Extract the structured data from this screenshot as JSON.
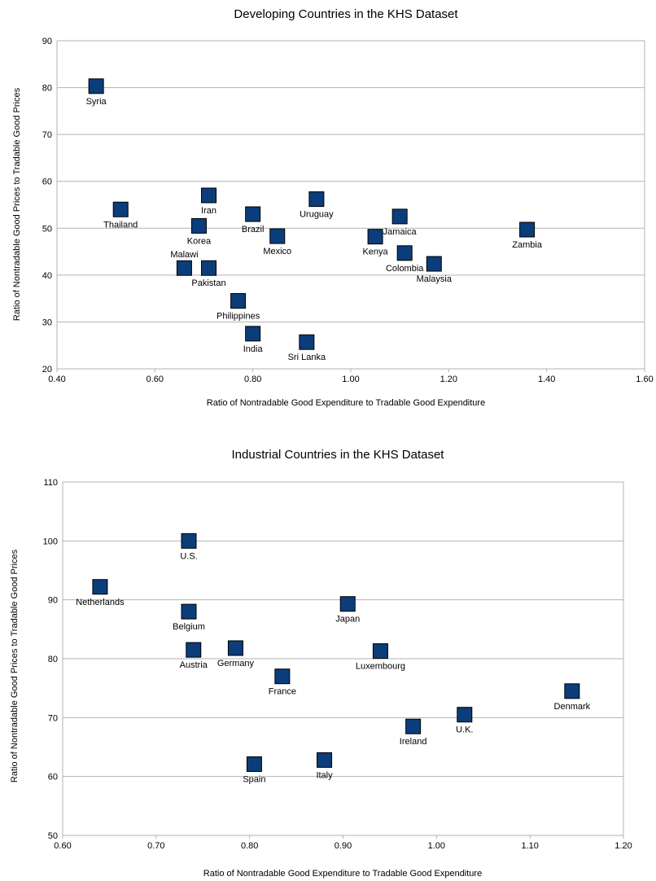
{
  "chart_data": [
    {
      "type": "scatter",
      "title": "Developing Countries in the KHS Dataset",
      "xlabel": "Ratio of Nontradable Good Expenditure to Tradable Good Expenditure",
      "ylabel": "Ratio of Nontradable Good Prices to Tradable Good Prices",
      "xlim": [
        0.4,
        1.6
      ],
      "ylim": [
        20,
        90
      ],
      "xticks": [
        "0.40",
        "0.60",
        "0.80",
        "1.00",
        "1.20",
        "1.40",
        "1.60"
      ],
      "yticks": [
        "20",
        "30",
        "40",
        "50",
        "60",
        "70",
        "80",
        "90"
      ],
      "grid": "horizontal",
      "marker_color": "#0b3d7a",
      "points": [
        {
          "label": "Syria",
          "x": 0.48,
          "y": 80.3,
          "pos": "below"
        },
        {
          "label": "Thailand",
          "x": 0.53,
          "y": 54.0,
          "pos": "below"
        },
        {
          "label": "Iran",
          "x": 0.71,
          "y": 57.0,
          "pos": "below"
        },
        {
          "label": "Korea",
          "x": 0.69,
          "y": 50.5,
          "pos": "below"
        },
        {
          "label": "Malawi",
          "x": 0.66,
          "y": 41.5,
          "pos": "above"
        },
        {
          "label": "Pakistan",
          "x": 0.71,
          "y": 41.5,
          "pos": "below"
        },
        {
          "label": "Brazil",
          "x": 0.8,
          "y": 53.0,
          "pos": "below"
        },
        {
          "label": "Mexico",
          "x": 0.85,
          "y": 48.3,
          "pos": "below"
        },
        {
          "label": "Uruguay",
          "x": 0.93,
          "y": 56.2,
          "pos": "below"
        },
        {
          "label": "Philippines",
          "x": 0.77,
          "y": 34.5,
          "pos": "below"
        },
        {
          "label": "India",
          "x": 0.8,
          "y": 27.5,
          "pos": "below"
        },
        {
          "label": "Sri Lanka",
          "x": 0.91,
          "y": 25.7,
          "pos": "below"
        },
        {
          "label": "Kenya",
          "x": 1.05,
          "y": 48.2,
          "pos": "below"
        },
        {
          "label": "Jamaica",
          "x": 1.1,
          "y": 52.5,
          "pos": "below"
        },
        {
          "label": "Colombia",
          "x": 1.11,
          "y": 44.7,
          "pos": "below"
        },
        {
          "label": "Malaysia",
          "x": 1.17,
          "y": 42.4,
          "pos": "below"
        },
        {
          "label": "Zambia",
          "x": 1.36,
          "y": 49.7,
          "pos": "below"
        }
      ]
    },
    {
      "type": "scatter",
      "title": "Industrial Countries in the KHS Dataset",
      "xlabel": "Ratio of Nontradable Good Expenditure to Tradable Good Expenditure",
      "ylabel": "Ratio of Nontradable Good Prices to Tradable Good Prices",
      "xlim": [
        0.6,
        1.2
      ],
      "ylim": [
        50,
        110
      ],
      "xticks": [
        "0.60",
        "0.70",
        "0.80",
        "0.90",
        "1.00",
        "1.10",
        "1.20"
      ],
      "yticks": [
        "50",
        "60",
        "70",
        "80",
        "90",
        "100",
        "110"
      ],
      "grid": "horizontal",
      "marker_color": "#0b3d7a",
      "points": [
        {
          "label": "U.S.",
          "x": 0.735,
          "y": 100.0,
          "pos": "below"
        },
        {
          "label": "Netherlands",
          "x": 0.64,
          "y": 92.2,
          "pos": "below"
        },
        {
          "label": "Belgium",
          "x": 0.735,
          "y": 88.0,
          "pos": "below"
        },
        {
          "label": "Austria",
          "x": 0.74,
          "y": 81.5,
          "pos": "below"
        },
        {
          "label": "Germany",
          "x": 0.785,
          "y": 81.8,
          "pos": "below"
        },
        {
          "label": "France",
          "x": 0.835,
          "y": 77.0,
          "pos": "below"
        },
        {
          "label": "Japan",
          "x": 0.905,
          "y": 89.3,
          "pos": "below"
        },
        {
          "label": "Luxembourg",
          "x": 0.94,
          "y": 81.3,
          "pos": "below"
        },
        {
          "label": "Spain",
          "x": 0.805,
          "y": 62.1,
          "pos": "below"
        },
        {
          "label": "Italy",
          "x": 0.88,
          "y": 62.8,
          "pos": "below"
        },
        {
          "label": "Ireland",
          "x": 0.975,
          "y": 68.5,
          "pos": "below"
        },
        {
          "label": "U.K.",
          "x": 1.03,
          "y": 70.5,
          "pos": "below"
        },
        {
          "label": "Denmark",
          "x": 1.145,
          "y": 74.5,
          "pos": "below"
        }
      ]
    }
  ]
}
